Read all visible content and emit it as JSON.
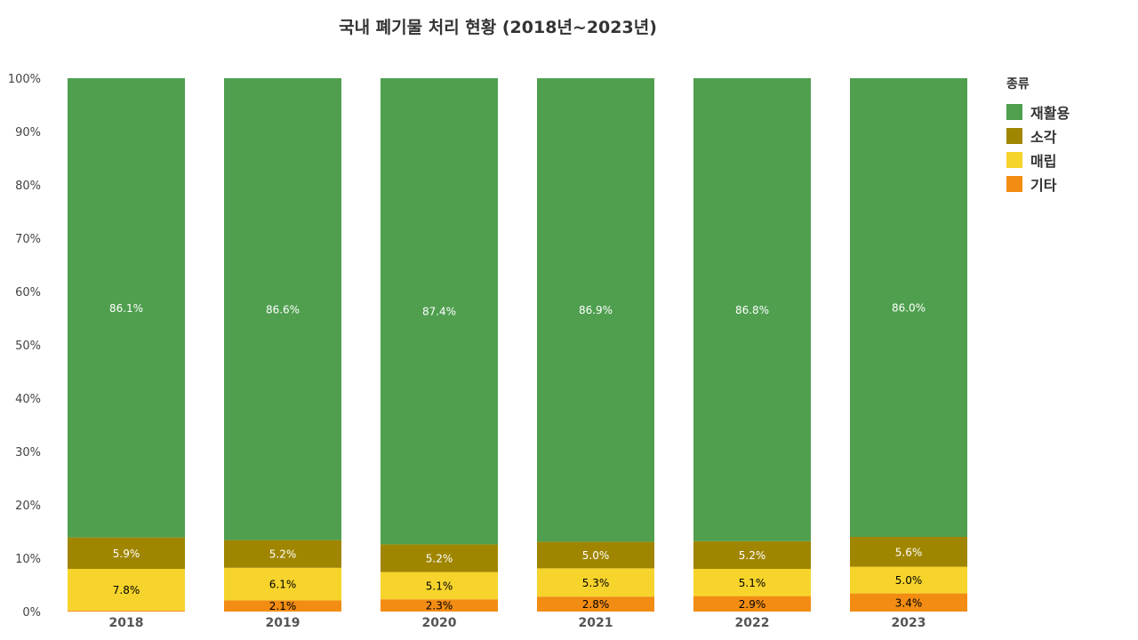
{
  "chart_data": {
    "type": "bar",
    "stacked": true,
    "title": "국내 폐기물 처리 현황 (2018년~2023년)",
    "categories": [
      "2018",
      "2019",
      "2020",
      "2021",
      "2022",
      "2023"
    ],
    "ylim": [
      0,
      100
    ],
    "ytick_labels": [
      "0%",
      "10%",
      "20%",
      "30%",
      "40%",
      "50%",
      "60%",
      "70%",
      "80%",
      "90%",
      "100%"
    ],
    "grid": false,
    "legend": {
      "title": "종류",
      "placement": "right"
    },
    "series": [
      {
        "name": "기타",
        "color": "#F28C13",
        "label_color": "#000000",
        "values": [
          0.2,
          2.1,
          2.3,
          2.8,
          2.9,
          3.4
        ],
        "labels": [
          "",
          "2.1%",
          "2.3%",
          "2.8%",
          "2.9%",
          "3.4%"
        ]
      },
      {
        "name": "매립",
        "color": "#F7D42C",
        "label_color": "#000000",
        "values": [
          7.8,
          6.1,
          5.1,
          5.3,
          5.1,
          5.0
        ],
        "labels": [
          "7.8%",
          "6.1%",
          "5.1%",
          "5.3%",
          "5.1%",
          "5.0%"
        ]
      },
      {
        "name": "소각",
        "color": "#A08600",
        "label_color": "#ffffff",
        "values": [
          5.9,
          5.2,
          5.2,
          5.0,
          5.2,
          5.6
        ],
        "labels": [
          "5.9%",
          "5.2%",
          "5.2%",
          "5.0%",
          "5.2%",
          "5.6%"
        ]
      },
      {
        "name": "재활용",
        "color": "#4F9F4F",
        "label_color": "#ffffff",
        "values": [
          86.1,
          86.6,
          87.4,
          86.9,
          86.8,
          86.0
        ],
        "labels": [
          "86.1%",
          "86.6%",
          "87.4%",
          "86.9%",
          "86.8%",
          "86.0%"
        ]
      }
    ],
    "legend_order": [
      "재활용",
      "소각",
      "매립",
      "기타"
    ]
  }
}
